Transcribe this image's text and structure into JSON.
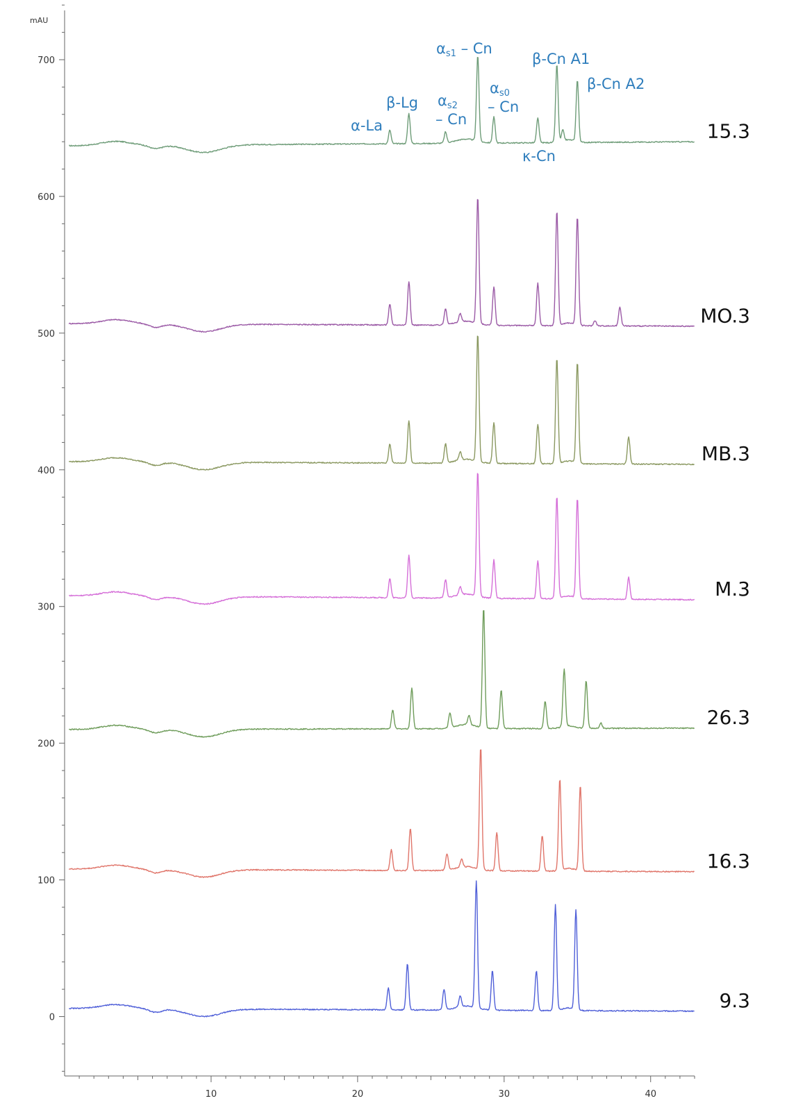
{
  "chart_data": {
    "type": "line",
    "unit_label": "mAU",
    "xlim": [
      0,
      43
    ],
    "ylim": [
      -45,
      745
    ],
    "x_ticks": [
      10,
      20,
      30,
      40
    ],
    "y_ticks": [
      0,
      100,
      200,
      300,
      400,
      500,
      600,
      700
    ],
    "peaks": [
      {
        "label": "α-La",
        "time": 22.2
      },
      {
        "label": "β-Lg",
        "time": 23.5
      },
      {
        "label": "αs2 – Cn",
        "time": 26.0
      },
      {
        "label": "αs1 – Cn",
        "time": 28.2
      },
      {
        "label": "αs0 – Cn",
        "time": 29.3
      },
      {
        "label": "κ-Cn",
        "time": 32.3
      },
      {
        "label": "β-Cn A1",
        "time": 33.6
      },
      {
        "label": "β-Cn A2",
        "time": 35.0
      }
    ],
    "series": [
      {
        "name": "15.3",
        "color": "#6e9c78",
        "baseline": 637,
        "end": 640,
        "peaks": [
          {
            "x": 22.2,
            "h": 10
          },
          {
            "x": 23.5,
            "h": 22
          },
          {
            "x": 26.0,
            "h": 8
          },
          {
            "x": 28.2,
            "h": 63
          },
          {
            "x": 29.3,
            "h": 19
          },
          {
            "x": 32.3,
            "h": 18
          },
          {
            "x": 33.6,
            "h": 57
          },
          {
            "x": 35.0,
            "h": 45
          },
          {
            "x": 34.0,
            "h": 8
          }
        ]
      },
      {
        "name": "MO.3",
        "color": "#9b5aa6",
        "baseline": 507,
        "end": 505,
        "peaks": [
          {
            "x": 22.2,
            "h": 15
          },
          {
            "x": 23.5,
            "h": 32
          },
          {
            "x": 26.0,
            "h": 12
          },
          {
            "x": 27.0,
            "h": 6
          },
          {
            "x": 28.2,
            "h": 93
          },
          {
            "x": 29.3,
            "h": 28
          },
          {
            "x": 32.3,
            "h": 31
          },
          {
            "x": 33.6,
            "h": 84
          },
          {
            "x": 35.0,
            "h": 79
          },
          {
            "x": 36.2,
            "h": 4
          },
          {
            "x": 37.9,
            "h": 14
          }
        ]
      },
      {
        "name": "MB.3",
        "color": "#8a9860",
        "baseline": 406,
        "end": 404,
        "peaks": [
          {
            "x": 22.2,
            "h": 14
          },
          {
            "x": 23.5,
            "h": 31
          },
          {
            "x": 26.0,
            "h": 14
          },
          {
            "x": 27.0,
            "h": 6
          },
          {
            "x": 28.2,
            "h": 94
          },
          {
            "x": 29.3,
            "h": 30
          },
          {
            "x": 32.3,
            "h": 29
          },
          {
            "x": 33.6,
            "h": 77
          },
          {
            "x": 35.0,
            "h": 74
          },
          {
            "x": 38.5,
            "h": 20
          }
        ]
      },
      {
        "name": "M.3",
        "color": "#d56fd8",
        "baseline": 308,
        "end": 305,
        "peaks": [
          {
            "x": 22.2,
            "h": 14
          },
          {
            "x": 23.5,
            "h": 31
          },
          {
            "x": 26.0,
            "h": 13
          },
          {
            "x": 27.0,
            "h": 6
          },
          {
            "x": 28.2,
            "h": 92
          },
          {
            "x": 29.3,
            "h": 28
          },
          {
            "x": 32.3,
            "h": 28
          },
          {
            "x": 33.6,
            "h": 75
          },
          {
            "x": 35.0,
            "h": 73
          },
          {
            "x": 38.5,
            "h": 16
          }
        ]
      },
      {
        "name": "26.3",
        "color": "#6e9c5a",
        "baseline": 210,
        "end": 211,
        "peaks": [
          {
            "x": 22.4,
            "h": 14
          },
          {
            "x": 23.7,
            "h": 30
          },
          {
            "x": 26.3,
            "h": 11
          },
          {
            "x": 27.6,
            "h": 7
          },
          {
            "x": 28.6,
            "h": 88
          },
          {
            "x": 29.8,
            "h": 28
          },
          {
            "x": 32.8,
            "h": 20
          },
          {
            "x": 34.1,
            "h": 42
          },
          {
            "x": 35.6,
            "h": 35
          },
          {
            "x": 36.6,
            "h": 4
          }
        ]
      },
      {
        "name": "16.3",
        "color": "#e0756a",
        "baseline": 108,
        "end": 106,
        "peaks": [
          {
            "x": 22.3,
            "h": 15
          },
          {
            "x": 23.6,
            "h": 31
          },
          {
            "x": 26.1,
            "h": 12
          },
          {
            "x": 27.1,
            "h": 6
          },
          {
            "x": 28.4,
            "h": 90
          },
          {
            "x": 29.5,
            "h": 28
          },
          {
            "x": 32.6,
            "h": 26
          },
          {
            "x": 33.8,
            "h": 67
          },
          {
            "x": 35.2,
            "h": 63
          }
        ]
      },
      {
        "name": "9.3",
        "color": "#4f5fd8",
        "baseline": 6,
        "end": 4,
        "peaks": [
          {
            "x": 22.1,
            "h": 16
          },
          {
            "x": 23.4,
            "h": 34
          },
          {
            "x": 25.9,
            "h": 15
          },
          {
            "x": 27.0,
            "h": 8
          },
          {
            "x": 28.1,
            "h": 93
          },
          {
            "x": 29.2,
            "h": 29
          },
          {
            "x": 32.2,
            "h": 29
          },
          {
            "x": 33.5,
            "h": 77
          },
          {
            "x": 34.9,
            "h": 73
          }
        ]
      }
    ]
  }
}
